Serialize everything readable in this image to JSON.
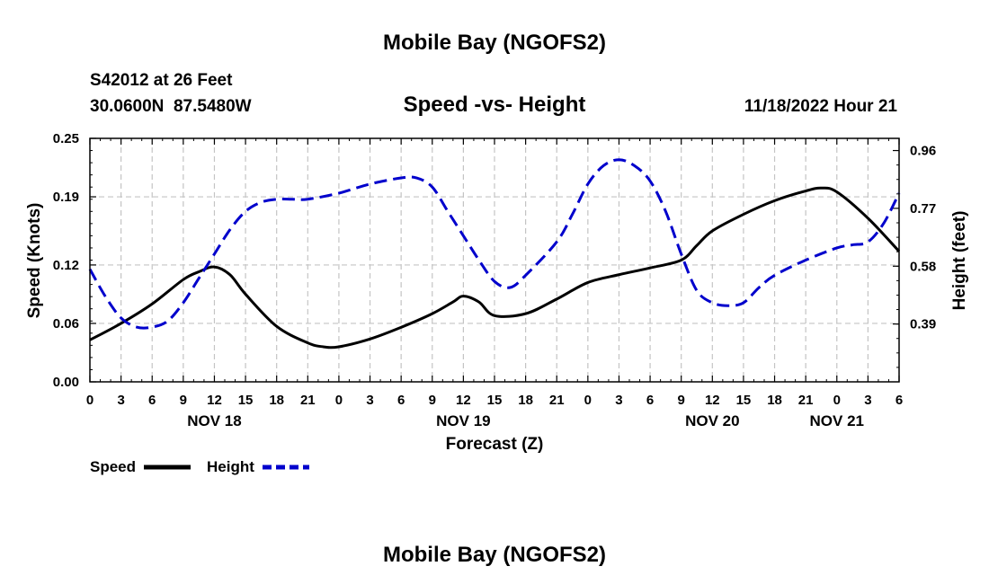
{
  "chart_data": {
    "type": "line",
    "title": "Mobile Bay (NGOFS2)",
    "subtitle": "Speed -vs- Height",
    "station": "S42012 at 26 Feet",
    "coords": "30.0600N  87.5480W",
    "datetime": "11/18/2022 Hour 21",
    "footer_title": "Mobile Bay (NGOFS2)",
    "xlabel": "Forecast (Z)",
    "ylabel_left": "Speed (Knots)",
    "ylabel_right": "Height (feet)",
    "x_range": [
      0,
      78
    ],
    "ylim_left": [
      0,
      0.25
    ],
    "ylim_right": [
      0.2,
      1.0
    ],
    "x_tick_values": [
      0,
      3,
      6,
      9,
      12,
      15,
      18,
      21,
      24,
      27,
      30,
      33,
      36,
      39,
      42,
      45,
      48,
      51,
      54,
      57,
      60,
      63,
      66,
      69,
      72,
      75,
      78
    ],
    "x_tick_labels": [
      "0",
      "3",
      "6",
      "9",
      "12",
      "15",
      "18",
      "21",
      "0",
      "3",
      "6",
      "9",
      "12",
      "15",
      "18",
      "21",
      "0",
      "3",
      "6",
      "9",
      "12",
      "15",
      "18",
      "21",
      "0",
      "3",
      "6"
    ],
    "day_labels": [
      {
        "label": "NOV 18",
        "x": 12
      },
      {
        "label": "NOV 19",
        "x": 36
      },
      {
        "label": "NOV 20",
        "x": 60
      },
      {
        "label": "NOV 21",
        "x": 72
      }
    ],
    "y_left_ticks": [
      {
        "value": 0.0,
        "label": "0.00"
      },
      {
        "value": 0.06,
        "label": "0.06"
      },
      {
        "value": 0.12,
        "label": "0.12"
      },
      {
        "value": 0.19,
        "label": "0.19"
      },
      {
        "value": 0.25,
        "label": "0.25"
      }
    ],
    "y_right_ticks": [
      {
        "value": 0.39,
        "label": "0.39"
      },
      {
        "value": 0.58,
        "label": "0.58"
      },
      {
        "value": 0.77,
        "label": "0.77"
      },
      {
        "value": 0.96,
        "label": "0.96"
      }
    ],
    "series": [
      {
        "name": "Speed",
        "axis": "left",
        "color": "#000000",
        "dash": "solid",
        "x": [
          0,
          3,
          6,
          9,
          10.5,
          12,
          13.5,
          15,
          18,
          21,
          22.5,
          24,
          27,
          30,
          33,
          35,
          36,
          37.5,
          39,
          42,
          45,
          48,
          51,
          54,
          57,
          58.5,
          60,
          63,
          66,
          69,
          70.5,
          72,
          75,
          78
        ],
        "y": [
          0.043,
          0.06,
          0.08,
          0.105,
          0.113,
          0.118,
          0.11,
          0.09,
          0.057,
          0.04,
          0.036,
          0.036,
          0.044,
          0.056,
          0.07,
          0.082,
          0.088,
          0.082,
          0.068,
          0.07,
          0.085,
          0.102,
          0.11,
          0.117,
          0.125,
          0.14,
          0.155,
          0.172,
          0.186,
          0.196,
          0.199,
          0.195,
          0.168,
          0.134
        ]
      },
      {
        "name": "Height",
        "axis": "right",
        "color": "#0000cc",
        "dash": "dashed",
        "x": [
          0,
          1.5,
          3,
          4.5,
          6,
          7.5,
          9,
          10.5,
          12,
          13.5,
          15,
          16.5,
          18,
          19.5,
          21,
          24,
          27,
          30,
          31.5,
          33,
          34.5,
          36,
          37.5,
          39,
          40.5,
          42,
          45,
          46.5,
          48,
          49.5,
          51,
          52.5,
          54,
          55.5,
          57,
          58.5,
          60,
          61.5,
          63,
          64.5,
          66,
          69,
          72,
          73.5,
          75,
          76.5,
          78
        ],
        "y": [
          0.57,
          0.48,
          0.41,
          0.38,
          0.38,
          0.4,
          0.46,
          0.54,
          0.62,
          0.7,
          0.76,
          0.79,
          0.8,
          0.8,
          0.8,
          0.82,
          0.85,
          0.87,
          0.87,
          0.84,
          0.76,
          0.68,
          0.6,
          0.53,
          0.51,
          0.55,
          0.66,
          0.75,
          0.85,
          0.91,
          0.93,
          0.91,
          0.86,
          0.76,
          0.62,
          0.5,
          0.46,
          0.45,
          0.46,
          0.51,
          0.55,
          0.6,
          0.64,
          0.65,
          0.66,
          0.72,
          0.82
        ]
      }
    ],
    "legend": [
      {
        "label": "Speed",
        "color": "#000000",
        "dash": "solid"
      },
      {
        "label": "Height",
        "color": "#0000cc",
        "dash": "dashed"
      }
    ]
  }
}
